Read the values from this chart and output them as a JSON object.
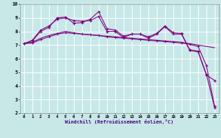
{
  "x": [
    0,
    1,
    2,
    3,
    4,
    5,
    6,
    7,
    8,
    9,
    10,
    11,
    12,
    13,
    14,
    15,
    16,
    17,
    18,
    19,
    20,
    21,
    22,
    23
  ],
  "line1": [
    7.1,
    7.35,
    8.1,
    8.4,
    8.9,
    9.0,
    8.8,
    8.75,
    8.8,
    9.1,
    8.0,
    8.0,
    7.55,
    7.8,
    7.8,
    7.5,
    7.8,
    8.35,
    7.8,
    7.8,
    6.6,
    6.5,
    4.8,
    4.4
  ],
  "line2": [
    7.1,
    7.3,
    8.0,
    8.3,
    9.0,
    9.05,
    8.6,
    8.65,
    8.9,
    9.45,
    8.2,
    8.1,
    7.65,
    7.8,
    7.8,
    7.6,
    7.85,
    8.4,
    7.9,
    7.85,
    6.65,
    6.55,
    4.85,
    2.4
  ],
  "line3": [
    7.1,
    7.2,
    7.5,
    7.7,
    7.85,
    8.0,
    7.9,
    7.8,
    7.75,
    7.7,
    7.65,
    7.6,
    7.55,
    7.5,
    7.45,
    7.4,
    7.35,
    7.3,
    7.25,
    7.2,
    7.1,
    7.0,
    6.9,
    6.8
  ],
  "line4": [
    7.1,
    7.15,
    7.4,
    7.6,
    7.8,
    7.9,
    7.85,
    7.8,
    7.75,
    7.7,
    7.6,
    7.55,
    7.5,
    7.45,
    7.4,
    7.35,
    7.3,
    7.25,
    7.2,
    7.15,
    7.05,
    6.9,
    5.5,
    2.5
  ],
  "line_color": "#800080",
  "bg_color": "#c8e8e8",
  "grid_color": "#ffffff",
  "xlabel": "Windchill (Refroidissement éolien,°C)",
  "ylim": [
    2,
    10
  ],
  "xlim": [
    -0.5,
    23.5
  ],
  "yticks": [
    2,
    3,
    4,
    5,
    6,
    7,
    8,
    9,
    10
  ],
  "xticks": [
    0,
    1,
    2,
    3,
    4,
    5,
    6,
    7,
    8,
    9,
    10,
    11,
    12,
    13,
    14,
    15,
    16,
    17,
    18,
    19,
    20,
    21,
    22,
    23
  ]
}
